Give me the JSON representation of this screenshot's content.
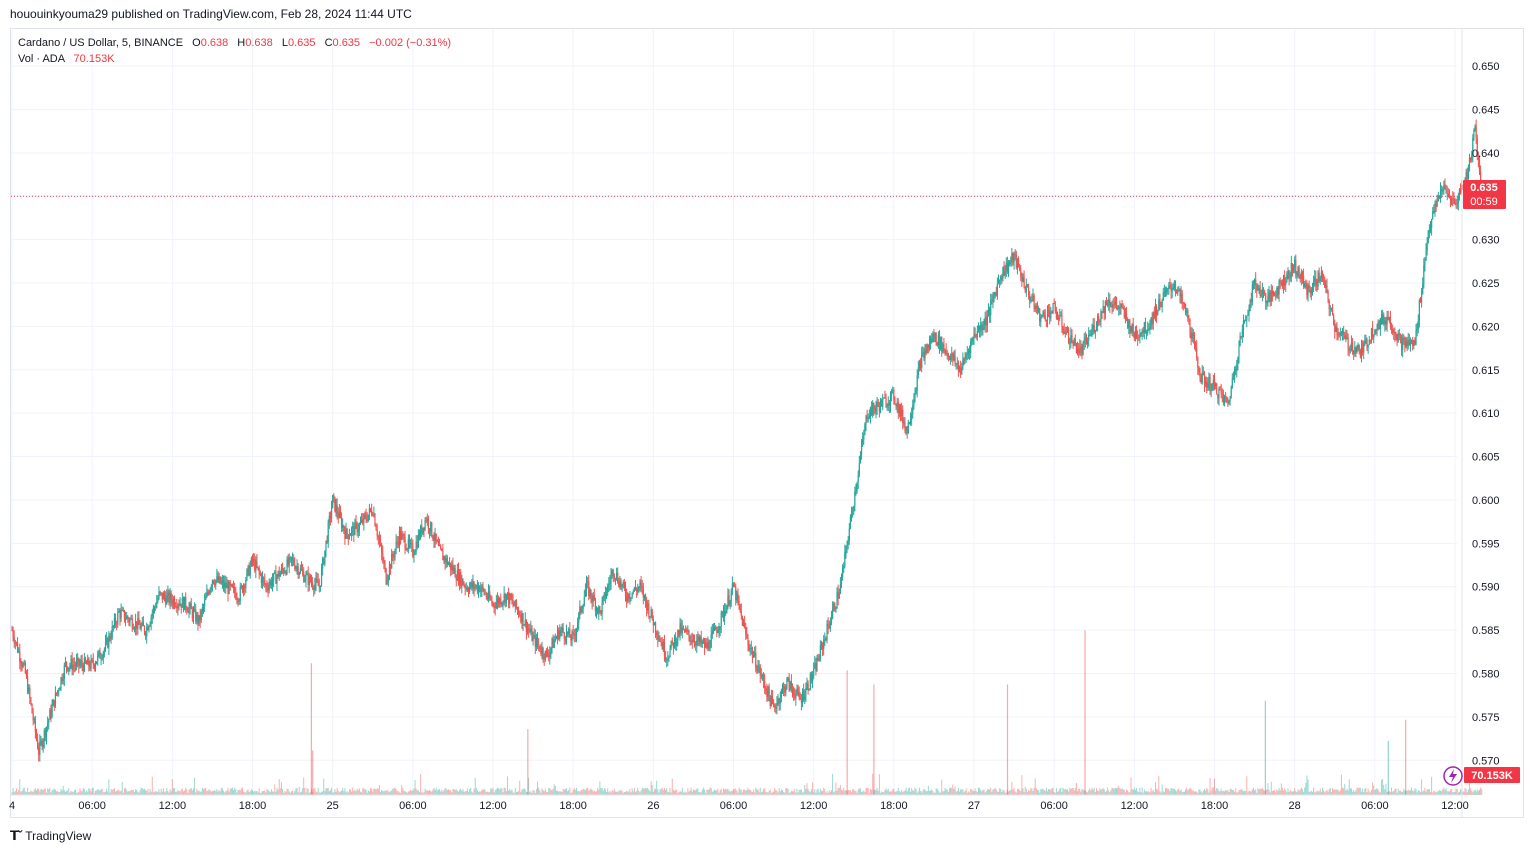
{
  "header": {
    "published": "hououinkyouma29 published on TradingView.com, Feb 28, 2024 11:44 UTC"
  },
  "legend": {
    "symbol": "Cardano / US Dollar, 5, BINANCE",
    "o_label": "O",
    "o_value": "0.638",
    "h_label": "H",
    "h_value": "0.638",
    "l_label": "L",
    "l_value": "0.635",
    "c_label": "C",
    "c_value": "0.635",
    "change": "−0.002 (−0.31%)",
    "vol_label": "Vol · ADA",
    "vol_value": "70.153K"
  },
  "price_tag": {
    "price": "0.635",
    "countdown": "00:59"
  },
  "volume_tag": "70.153K",
  "footer": {
    "brand": "TradingView"
  },
  "colors": {
    "up": "#26a69a",
    "down": "#ef5350",
    "tag": "#f23645",
    "grid": "#f0f3fa"
  },
  "chart_data": {
    "type": "candlestick",
    "y_axis_side": "right",
    "ylim": [
      0.566,
      0.653
    ],
    "y_ticks": [
      "0.650",
      "0.645",
      "0.640",
      "0.635",
      "0.630",
      "0.625",
      "0.620",
      "0.615",
      "0.610",
      "0.605",
      "0.600",
      "0.595",
      "0.590",
      "0.585",
      "0.580",
      "0.575",
      "0.570"
    ],
    "x_ticks": [
      {
        "label": "4",
        "hours": 0
      },
      {
        "label": "06:00",
        "hours": 6
      },
      {
        "label": "12:00",
        "hours": 12
      },
      {
        "label": "18:00",
        "hours": 18
      },
      {
        "label": "25",
        "hours": 24
      },
      {
        "label": "06:00",
        "hours": 30
      },
      {
        "label": "12:00",
        "hours": 36
      },
      {
        "label": "18:00",
        "hours": 42
      },
      {
        "label": "26",
        "hours": 48
      },
      {
        "label": "06:00",
        "hours": 54
      },
      {
        "label": "12:00",
        "hours": 60
      },
      {
        "label": "18:00",
        "hours": 66
      },
      {
        "label": "27",
        "hours": 72
      },
      {
        "label": "06:00",
        "hours": 78
      },
      {
        "label": "12:00",
        "hours": 84
      },
      {
        "label": "18:00",
        "hours": 90
      },
      {
        "label": "28",
        "hours": 96
      },
      {
        "label": "06:00",
        "hours": 102
      },
      {
        "label": "12:00",
        "hours": 108
      }
    ],
    "current_price": 0.635,
    "price_path": [
      [
        0,
        0.585
      ],
      [
        1,
        0.58
      ],
      [
        2,
        0.571
      ],
      [
        3,
        0.576
      ],
      [
        4,
        0.581
      ],
      [
        6,
        0.581
      ],
      [
        7,
        0.583
      ],
      [
        8,
        0.587
      ],
      [
        10,
        0.585
      ],
      [
        11,
        0.589
      ],
      [
        13,
        0.588
      ],
      [
        14,
        0.586
      ],
      [
        15,
        0.591
      ],
      [
        17,
        0.589
      ],
      [
        18,
        0.593
      ],
      [
        19,
        0.59
      ],
      [
        21,
        0.593
      ],
      [
        22,
        0.591
      ],
      [
        23,
        0.59
      ],
      [
        24,
        0.6
      ],
      [
        25,
        0.596
      ],
      [
        26,
        0.597
      ],
      [
        27,
        0.599
      ],
      [
        28,
        0.591
      ],
      [
        29,
        0.596
      ],
      [
        30,
        0.594
      ],
      [
        31,
        0.598
      ],
      [
        32,
        0.594
      ],
      [
        33,
        0.592
      ],
      [
        34,
        0.59
      ],
      [
        35,
        0.59
      ],
      [
        36,
        0.588
      ],
      [
        37,
        0.589
      ],
      [
        38,
        0.587
      ],
      [
        39,
        0.584
      ],
      [
        40,
        0.582
      ],
      [
        41,
        0.585
      ],
      [
        42,
        0.584
      ],
      [
        43,
        0.59
      ],
      [
        44,
        0.587
      ],
      [
        45,
        0.592
      ],
      [
        46,
        0.589
      ],
      [
        47,
        0.59
      ],
      [
        48,
        0.586
      ],
      [
        49,
        0.582
      ],
      [
        50,
        0.585
      ],
      [
        51,
        0.584
      ],
      [
        52,
        0.583
      ],
      [
        53,
        0.586
      ],
      [
        54,
        0.59
      ],
      [
        55,
        0.584
      ],
      [
        56,
        0.58
      ],
      [
        57,
        0.576
      ],
      [
        58,
        0.579
      ],
      [
        59,
        0.577
      ],
      [
        60,
        0.58
      ],
      [
        61,
        0.585
      ],
      [
        62,
        0.59
      ],
      [
        63,
        0.6
      ],
      [
        64,
        0.61
      ],
      [
        65,
        0.611
      ],
      [
        66,
        0.612
      ],
      [
        67,
        0.608
      ],
      [
        68,
        0.616
      ],
      [
        69,
        0.619
      ],
      [
        70,
        0.617
      ],
      [
        71,
        0.615
      ],
      [
        72,
        0.619
      ],
      [
        73,
        0.621
      ],
      [
        74,
        0.626
      ],
      [
        75,
        0.628
      ],
      [
        76,
        0.624
      ],
      [
        77,
        0.621
      ],
      [
        78,
        0.622
      ],
      [
        79,
        0.619
      ],
      [
        80,
        0.617
      ],
      [
        81,
        0.62
      ],
      [
        82,
        0.623
      ],
      [
        83,
        0.622
      ],
      [
        84,
        0.619
      ],
      [
        85,
        0.62
      ],
      [
        86,
        0.623
      ],
      [
        87,
        0.625
      ],
      [
        88,
        0.621
      ],
      [
        89,
        0.614
      ],
      [
        90,
        0.613
      ],
      [
        91,
        0.611
      ],
      [
        92,
        0.619
      ],
      [
        93,
        0.625
      ],
      [
        94,
        0.623
      ],
      [
        95,
        0.625
      ],
      [
        96,
        0.627
      ],
      [
        97,
        0.624
      ],
      [
        98,
        0.626
      ],
      [
        99,
        0.62
      ],
      [
        100,
        0.618
      ],
      [
        101,
        0.617
      ],
      [
        102,
        0.62
      ],
      [
        103,
        0.621
      ],
      [
        104,
        0.618
      ],
      [
        105,
        0.618
      ],
      [
        106,
        0.631
      ],
      [
        107,
        0.636
      ],
      [
        108,
        0.634
      ],
      [
        109,
        0.638
      ],
      [
        109.5,
        0.643
      ],
      [
        110,
        0.635
      ]
    ],
    "volume_scale_max": 70.153,
    "volume_spikes": [
      {
        "hours": 22.4,
        "value": 56
      },
      {
        "hours": 22.5,
        "value": 19
      },
      {
        "hours": 38.6,
        "value": 28
      },
      {
        "hours": 62.5,
        "value": 53
      },
      {
        "hours": 64.5,
        "value": 47
      },
      {
        "hours": 74.5,
        "value": 47
      },
      {
        "hours": 80.3,
        "value": 70
      },
      {
        "hours": 93.8,
        "value": 40
      },
      {
        "hours": 103,
        "value": 23
      },
      {
        "hours": 104.3,
        "value": 32
      }
    ]
  }
}
